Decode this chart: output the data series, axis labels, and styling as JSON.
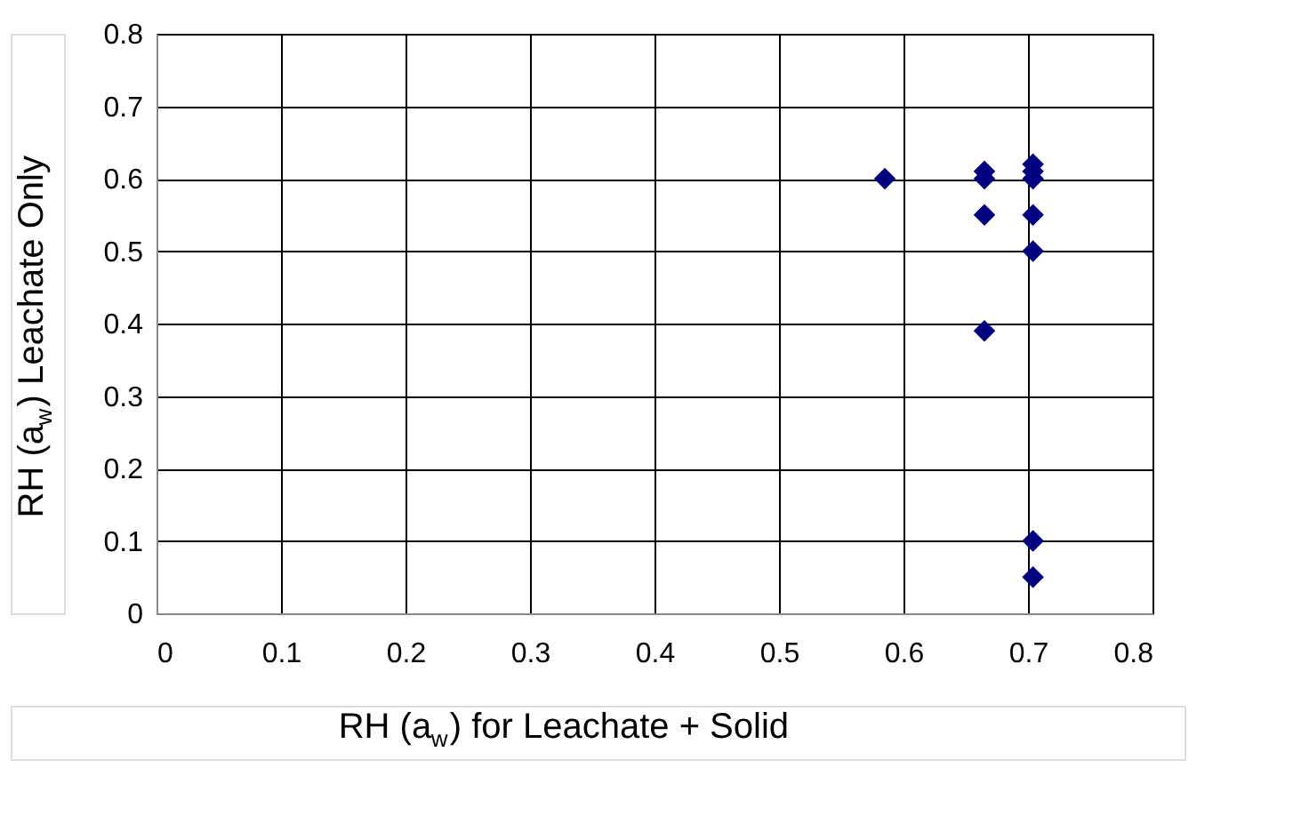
{
  "chart_data": {
    "type": "scatter",
    "xlabel": "RH (a$_{w}$) for Leachate + Solid",
    "ylabel": "RH (a$_{w}$) Leachate Only",
    "series": [
      {
        "color": "#000080",
        "x": [
          0.585,
          0.665,
          0.665,
          0.665,
          0.665,
          0.704,
          0.704,
          0.704,
          0.704,
          0.704,
          0.704,
          0.704
        ],
        "values": [
          0.6,
          0.61,
          0.6,
          0.55,
          0.39,
          0.62,
          0.61,
          0.6,
          0.55,
          0.5,
          0.1,
          0.05
        ]
      }
    ],
    "xlim": [
      0,
      0.8
    ],
    "ylim": [
      0,
      0.8
    ],
    "xticks": [
      0,
      0.1,
      0.2,
      0.3,
      0.4,
      0.5,
      0.6,
      0.7,
      0.8
    ],
    "yticks": [
      0,
      0.1,
      0.2,
      0.3,
      0.4,
      0.5,
      0.6,
      0.7,
      0.8
    ],
    "grid": true,
    "marker": "diamond"
  }
}
